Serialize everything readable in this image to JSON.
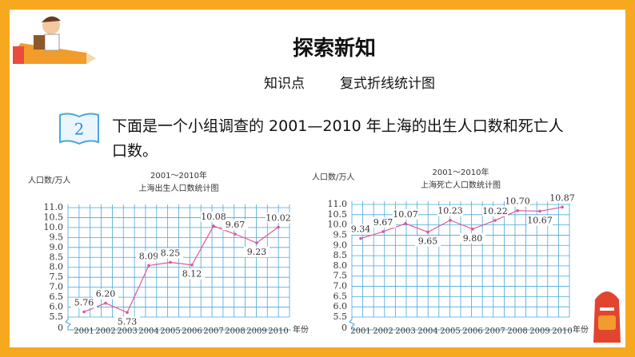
{
  "header": {
    "title": "探索新知",
    "topic_label": "知识点",
    "topic": "复式折线统计图"
  },
  "problem": {
    "number": "2",
    "text": "下面是一个小组调查的 2001—2010 年上海的出生人口数和死亡人口数。"
  },
  "chart_data": [
    {
      "type": "line",
      "title": [
        "2001～2010年",
        "上海出生人口数统计图"
      ],
      "y_label": "人口数/万人",
      "x_label": "年份",
      "categories": [
        "2001",
        "2002",
        "2003",
        "2004",
        "2005",
        "2006",
        "2007",
        "2008",
        "2009",
        "2010"
      ],
      "values": [
        5.76,
        6.2,
        5.73,
        8.09,
        8.25,
        8.12,
        10.08,
        9.67,
        9.23,
        10.02
      ],
      "value_labels": [
        "5.76",
        "6.20",
        "5.73",
        "8.09",
        "8.25",
        "8.12",
        "10.08",
        "9.67",
        "9.23",
        "10.02"
      ],
      "color": "#e0559a",
      "grid_color": "#49a7d9",
      "ylim": [
        5.5,
        11
      ],
      "yticks": [
        {
          "value": 5.5,
          "label": "5.5"
        },
        {
          "value": 6,
          "label": "6.0"
        },
        {
          "value": 6.5,
          "label": "6.5"
        },
        {
          "value": 7,
          "label": "7.0"
        },
        {
          "value": 7.5,
          "label": "7.5"
        },
        {
          "value": 8,
          "label": "8.0"
        },
        {
          "value": 8.5,
          "label": "8.5"
        },
        {
          "value": 9,
          "label": "9.0"
        },
        {
          "value": 9.5,
          "label": "9.5"
        },
        {
          "value": 10,
          "label": "10.0"
        },
        {
          "value": 10.5,
          "label": "10.5"
        },
        {
          "value": 11,
          "label": "11.0"
        }
      ],
      "origin_label": "0",
      "grid": true
    },
    {
      "type": "line",
      "title": [
        "2001～2010年",
        "上海死亡人口数统计图"
      ],
      "y_label": "人口数/万人",
      "x_label": "年份",
      "categories": [
        "2001",
        "2002",
        "2003",
        "2004",
        "2005",
        "2006",
        "2007",
        "2008",
        "2009",
        "2010"
      ],
      "values": [
        9.34,
        9.67,
        10.07,
        9.65,
        10.23,
        9.8,
        10.22,
        10.7,
        10.67,
        10.87
      ],
      "value_labels": [
        "9.34",
        "9.67",
        "10.07",
        "9.65",
        "10.23",
        "9.80",
        "10.22",
        "10.70",
        "10.67",
        "10.87"
      ],
      "color": "#e0559a",
      "grid_color": "#49a7d9",
      "ylim": [
        5.5,
        11
      ],
      "yticks": [
        {
          "value": 5.5,
          "label": "5.5"
        },
        {
          "value": 6,
          "label": "6.0"
        },
        {
          "value": 6.5,
          "label": "6.5"
        },
        {
          "value": 7,
          "label": "7.0"
        },
        {
          "value": 7.5,
          "label": "7.5"
        },
        {
          "value": 8,
          "label": "8.0"
        },
        {
          "value": 8.5,
          "label": "8.5"
        },
        {
          "value": 9,
          "label": "9.0"
        },
        {
          "value": 9.5,
          "label": "9.5"
        },
        {
          "value": 10,
          "label": "10.0"
        },
        {
          "value": 10.5,
          "label": "10.5"
        },
        {
          "value": 11,
          "label": "11.0"
        }
      ],
      "origin_label": "0",
      "grid": true
    }
  ]
}
